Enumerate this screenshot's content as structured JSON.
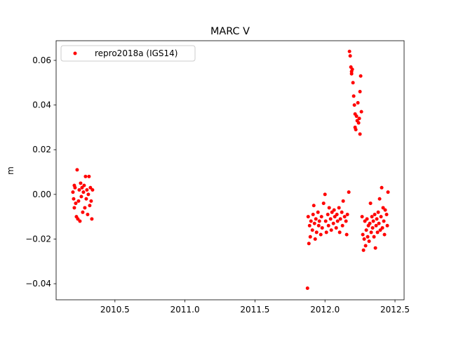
{
  "chart_data": {
    "type": "scatter",
    "title": "MARC V",
    "ylabel": "m",
    "legend": "upper left",
    "grid": false,
    "xlim": [
      2010.08,
      2012.565
    ],
    "ylim": [
      -0.0472,
      0.0688
    ],
    "xticks": [
      {
        "value": 2010.5,
        "label": "2010.5"
      },
      {
        "value": 2011.0,
        "label": "2011.0"
      },
      {
        "value": 2011.5,
        "label": "2011.5"
      },
      {
        "value": 2012.0,
        "label": "2012.0"
      },
      {
        "value": 2012.5,
        "label": "2012.5"
      }
    ],
    "yticks": [
      {
        "value": -0.04,
        "label": "−0.04"
      },
      {
        "value": -0.02,
        "label": "−0.02"
      },
      {
        "value": 0,
        "label": "0.00"
      },
      0.02,
      0.04,
      0.06
    ],
    "series": [
      {
        "name": "repro2018a (IGS14)",
        "color": "#ff0000",
        "x": [
          2010.2,
          2010.205,
          2010.21,
          2010.21,
          2010.215,
          2010.22,
          2010.225,
          2010.23,
          2010.235,
          2010.24,
          2010.245,
          2010.25,
          2010.255,
          2010.26,
          2010.265,
          2010.27,
          2010.275,
          2010.28,
          2010.285,
          2010.29,
          2010.295,
          2010.3,
          2010.305,
          2010.31,
          2010.315,
          2010.32,
          2010.325,
          2010.33,
          2010.335,
          2010.34,
          2011.875,
          2011.88,
          2011.885,
          2011.89,
          2011.895,
          2011.9,
          2011.91,
          2011.915,
          2011.92,
          2011.925,
          2011.93,
          2011.935,
          2011.94,
          2011.95,
          2011.955,
          2011.96,
          2011.97,
          2011.975,
          2011.98,
          2011.99,
          2012.0,
          2012.005,
          2012.01,
          2012.02,
          2012.025,
          2012.03,
          2012.04,
          2012.045,
          2012.05,
          2012.06,
          2012.065,
          2012.07,
          2012.08,
          2012.085,
          2012.09,
          2012.1,
          2012.105,
          2012.11,
          2012.12,
          2012.125,
          2012.13,
          2012.14,
          2012.15,
          2012.155,
          2012.16,
          2012.17,
          2012.175,
          2012.18,
          2012.185,
          2012.19,
          2012.19,
          2012.195,
          2012.2,
          2012.205,
          2012.21,
          2012.215,
          2012.215,
          2012.22,
          2012.225,
          2012.23,
          2012.235,
          2012.24,
          2012.245,
          2012.25,
          2012.25,
          2012.255,
          2012.26,
          2012.265,
          2012.27,
          2012.275,
          2012.28,
          2012.285,
          2012.29,
          2012.295,
          2012.3,
          2012.305,
          2012.31,
          2012.315,
          2012.32,
          2012.325,
          2012.33,
          2012.335,
          2012.34,
          2012.345,
          2012.35,
          2012.355,
          2012.36,
          2012.365,
          2012.37,
          2012.375,
          2012.38,
          2012.385,
          2012.39,
          2012.395,
          2012.4,
          2012.405,
          2012.41,
          2012.415,
          2012.42,
          2012.425,
          2012.43,
          2012.44,
          2012.445,
          2012.45
        ],
        "values": [
          0.001,
          -0.002,
          0.004,
          -0.006,
          0.003,
          -0.004,
          -0.01,
          0.011,
          -0.011,
          -0.003,
          0.002,
          -0.012,
          0.005,
          -0.001,
          0.003,
          -0.008,
          0.001,
          0.004,
          -0.006,
          0.008,
          -0.002,
          0.002,
          -0.009,
          0,
          0.008,
          -0.005,
          0.003,
          -0.003,
          -0.011,
          0.002,
          -0.042,
          -0.01,
          -0.022,
          -0.014,
          -0.019,
          -0.012,
          -0.016,
          -0.009,
          -0.005,
          -0.013,
          -0.02,
          -0.011,
          -0.017,
          -0.008,
          -0.014,
          -0.012,
          -0.018,
          -0.01,
          -0.015,
          -0.004,
          0,
          -0.012,
          -0.017,
          -0.009,
          -0.014,
          -0.006,
          -0.011,
          -0.016,
          -0.008,
          -0.013,
          -0.007,
          -0.01,
          -0.015,
          -0.009,
          -0.012,
          -0.006,
          -0.017,
          -0.011,
          -0.008,
          -0.014,
          -0.003,
          -0.01,
          -0.012,
          -0.018,
          -0.009,
          0.001,
          0.064,
          0.062,
          0.057,
          0.055,
          0.054,
          0.056,
          0.05,
          0.044,
          0.04,
          0.036,
          0.03,
          0.029,
          0.035,
          0.033,
          0.041,
          0.032,
          0.034,
          0.027,
          0.046,
          0.053,
          0.037,
          -0.01,
          -0.018,
          -0.025,
          -0.02,
          -0.012,
          -0.023,
          -0.016,
          -0.011,
          -0.019,
          -0.014,
          -0.021,
          -0.013,
          -0.004,
          -0.017,
          -0.01,
          -0.015,
          -0.012,
          -0.019,
          -0.009,
          -0.024,
          -0.014,
          -0.011,
          -0.017,
          -0.008,
          -0.013,
          -0.002,
          -0.016,
          -0.01,
          0.003,
          -0.015,
          -0.006,
          -0.012,
          -0.018,
          -0.007,
          -0.009,
          -0.014,
          0.001
        ]
      }
    ]
  }
}
